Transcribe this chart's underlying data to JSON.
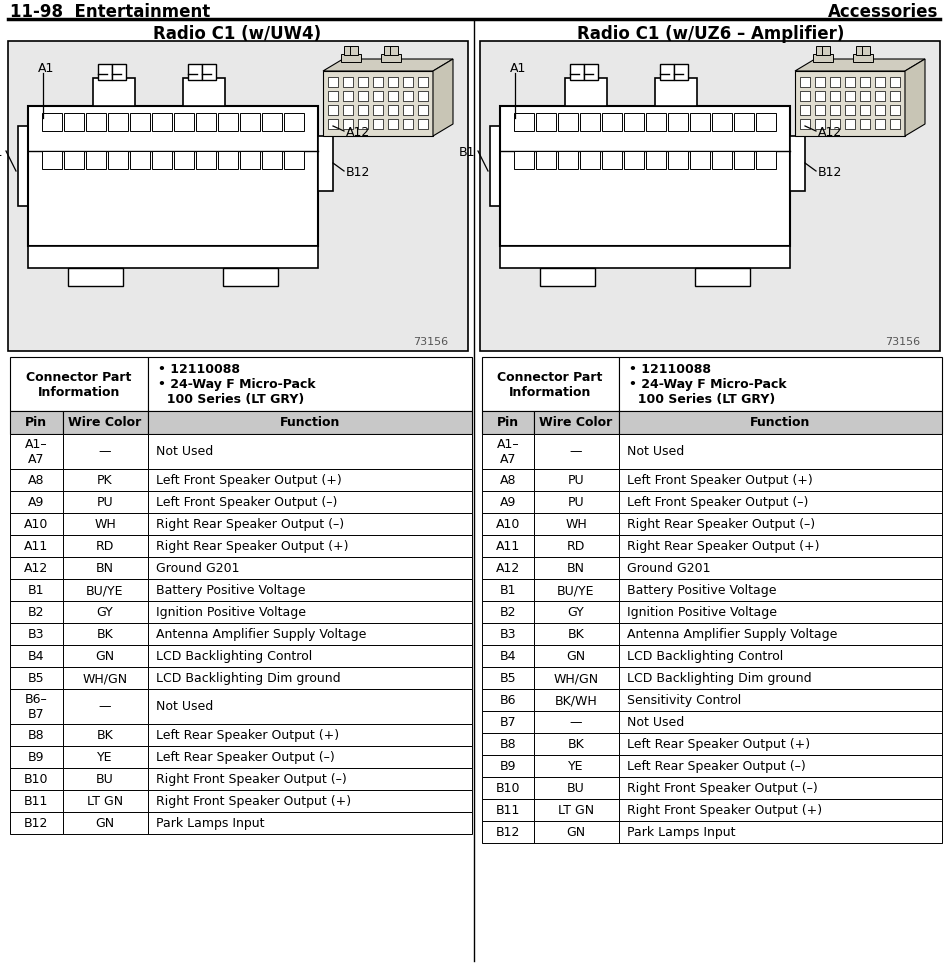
{
  "title_left": "11-98  Entertainment",
  "title_right": "Accessories",
  "radio1_title": "Radio C1 (w/UW4)",
  "radio2_title": "Radio C1 (w/UZ6 – Amplifier)",
  "connector_info_title": "Connector Part\nInformation",
  "connector_bullets": "• 12110088\n• 24-Way F Micro-Pack\n  100 Series (LT GRY)",
  "col_headers": [
    "Pin",
    "Wire Color",
    "Function"
  ],
  "table1_rows": [
    [
      "A1–\nA7",
      "—",
      "Not Used"
    ],
    [
      "A8",
      "PK",
      "Left Front Speaker Output (+)"
    ],
    [
      "A9",
      "PU",
      "Left Front Speaker Output (–)"
    ],
    [
      "A10",
      "WH",
      "Right Rear Speaker Output (–)"
    ],
    [
      "A11",
      "RD",
      "Right Rear Speaker Output (+)"
    ],
    [
      "A12",
      "BN",
      "Ground G201"
    ],
    [
      "B1",
      "BU/YE",
      "Battery Positive Voltage"
    ],
    [
      "B2",
      "GY",
      "Ignition Positive Voltage"
    ],
    [
      "B3",
      "BK",
      "Antenna Amplifier Supply Voltage"
    ],
    [
      "B4",
      "GN",
      "LCD Backlighting Control"
    ],
    [
      "B5",
      "WH/GN",
      "LCD Backlighting Dim ground"
    ],
    [
      "B6–\nB7",
      "—",
      "Not Used"
    ],
    [
      "B8",
      "BK",
      "Left Rear Speaker Output (+)"
    ],
    [
      "B9",
      "YE",
      "Left Rear Speaker Output (–)"
    ],
    [
      "B10",
      "BU",
      "Right Front Speaker Output (–)"
    ],
    [
      "B11",
      "LT GN",
      "Right Front Speaker Output (+)"
    ],
    [
      "B12",
      "GN",
      "Park Lamps Input"
    ]
  ],
  "table2_rows": [
    [
      "A1–\nA7",
      "—",
      "Not Used"
    ],
    [
      "A8",
      "PU",
      "Left Front Speaker Output (+)"
    ],
    [
      "A9",
      "PU",
      "Left Front Speaker Output (–)"
    ],
    [
      "A10",
      "WH",
      "Right Rear Speaker Output (–)"
    ],
    [
      "A11",
      "RD",
      "Right Rear Speaker Output (+)"
    ],
    [
      "A12",
      "BN",
      "Ground G201"
    ],
    [
      "B1",
      "BU/YE",
      "Battery Positive Voltage"
    ],
    [
      "B2",
      "GY",
      "Ignition Positive Voltage"
    ],
    [
      "B3",
      "BK",
      "Antenna Amplifier Supply Voltage"
    ],
    [
      "B4",
      "GN",
      "LCD Backlighting Control"
    ],
    [
      "B5",
      "WH/GN",
      "LCD Backlighting Dim ground"
    ],
    [
      "B6",
      "BK/WH",
      "Sensitivity Control"
    ],
    [
      "B7",
      "—",
      "Not Used"
    ],
    [
      "B8",
      "BK",
      "Left Rear Speaker Output (+)"
    ],
    [
      "B9",
      "YE",
      "Left Rear Speaker Output (–)"
    ],
    [
      "B10",
      "BU",
      "Right Front Speaker Output (–)"
    ],
    [
      "B11",
      "LT GN",
      "Right Front Speaker Output (+)"
    ],
    [
      "B12",
      "GN",
      "Park Lamps Input"
    ]
  ],
  "diagram_note": "73156",
  "bg_white": "#ffffff",
  "bg_lightgray": "#e8e8e8",
  "bg_gray": "#c8c8c8",
  "border_color": "#000000"
}
